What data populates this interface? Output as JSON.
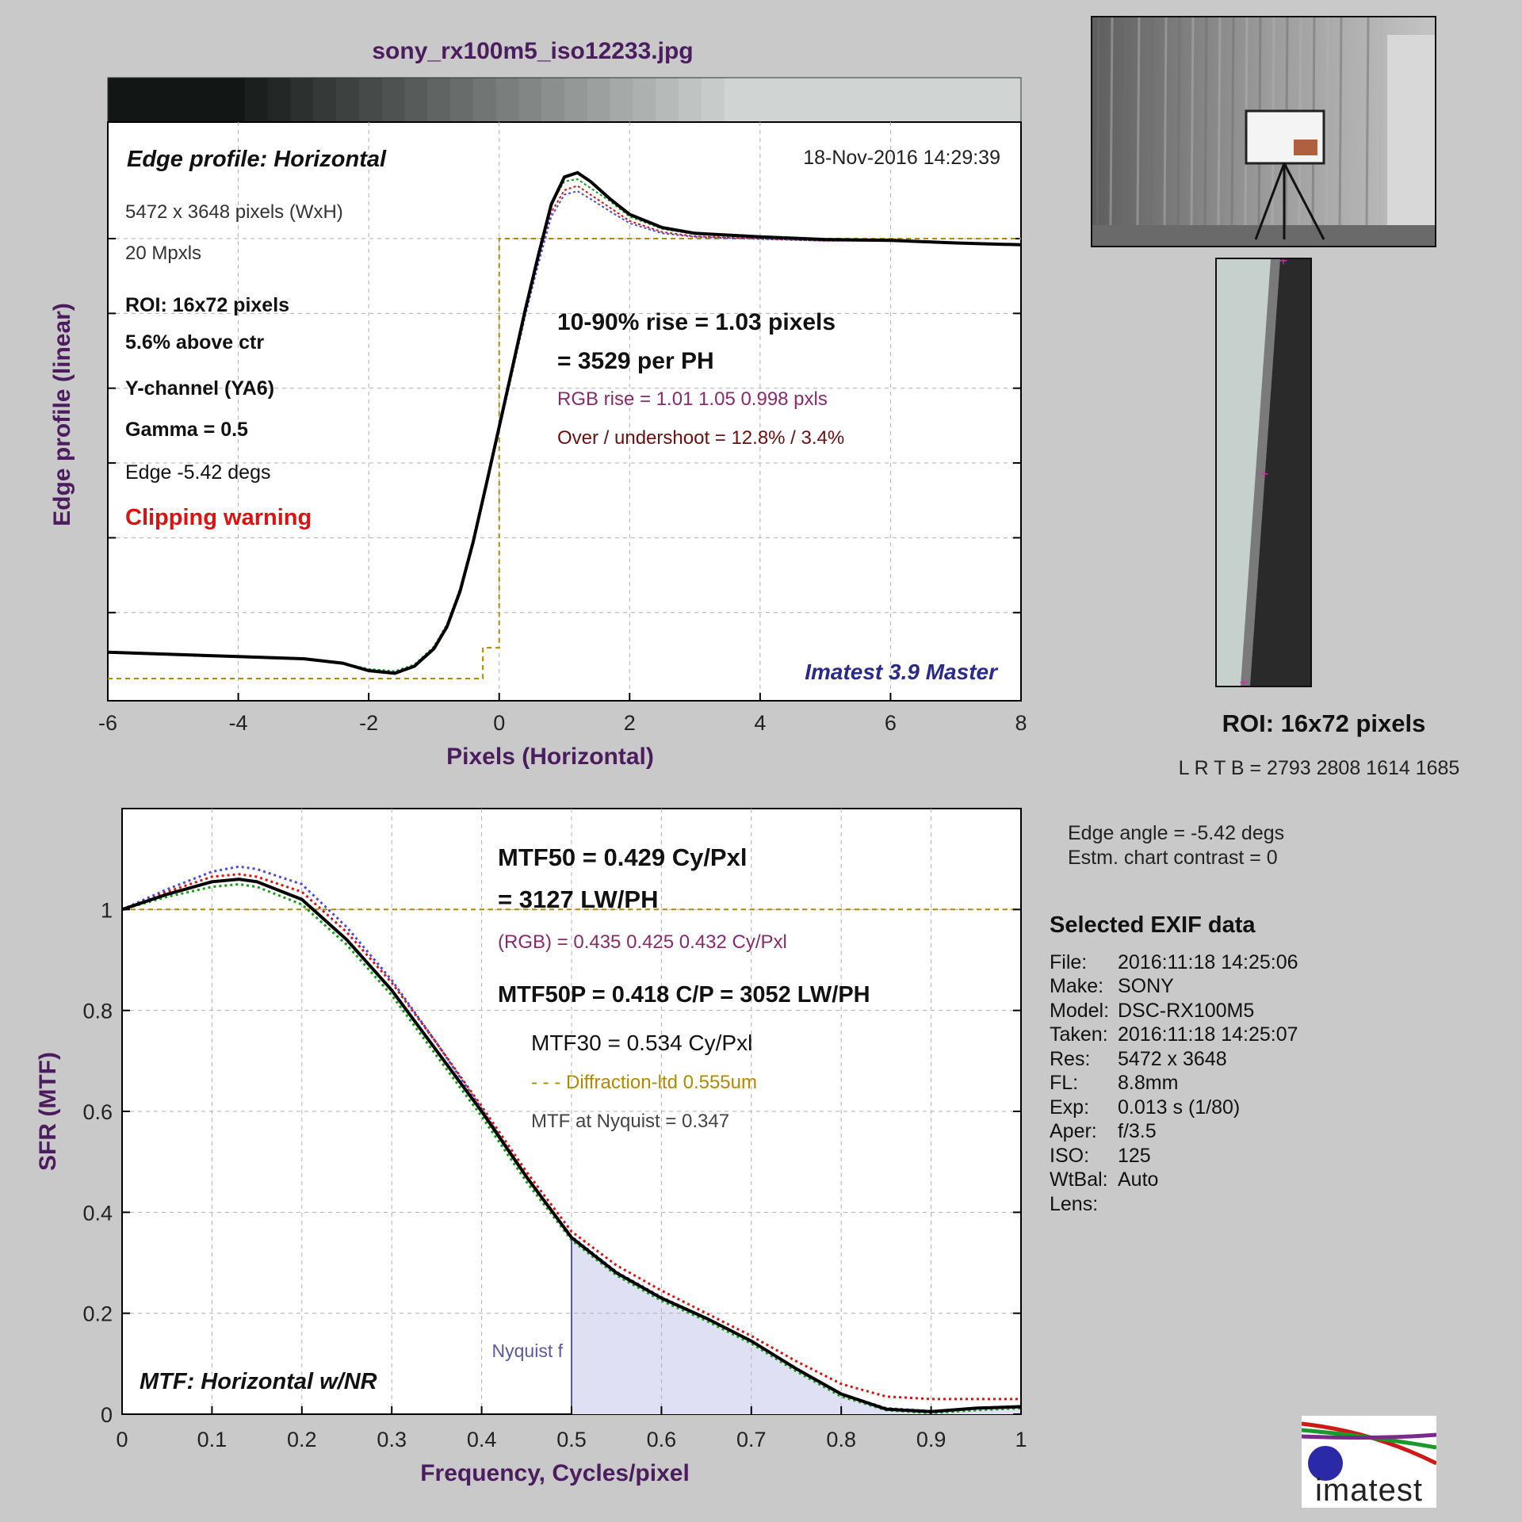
{
  "file_title": "sony_rx100m5_iso12233.jpg",
  "colors": {
    "title": "#4b1c5e",
    "axis_label": "#4b1c5e",
    "rgb_text": "#8a2a6e",
    "overshoot_text": "#6a1010",
    "clipping": "#dd1111",
    "imatest": "#2a2a8a",
    "diffraction": "#b08a00",
    "nyquist": "#5a5aa0",
    "red_series": "#e01010",
    "green_series": "#10a010",
    "blue_series": "#4a4ad8",
    "y_series": "#000000"
  },
  "edge": {
    "chart_title": "Edge profile: Horizontal",
    "date": "18-Nov-2016 14:29:39",
    "size": "5472 x 3648 pixels  (WxH)",
    "mpxls": "20 Mpxls",
    "roi": "ROI:  16x72 pixels",
    "above": "5.6% above ctr",
    "channel": "Y-channel  (YA6)",
    "gamma": "Gamma = 0.5",
    "edge_angle": "Edge -5.42 degs",
    "clipping": "Clipping warning",
    "rise1": "10-90% rise = 1.03 pixels",
    "rise2": "= 3529 per PH",
    "rgb_rise": "RGB rise = 1.01  1.05  0.998 pxls",
    "overshoot": "Over / undershoot = 12.8% / 3.4%",
    "watermark": "Imatest 3.9 Master"
  },
  "roi_panel": {
    "label": "ROI:  16x72 pixels",
    "coords": "L R  T B = 2793 2808  1614 1685",
    "edge_angle": "Edge angle = -5.42 degs",
    "contrast": "Estm. chart contrast = 0"
  },
  "mtf": {
    "mtf50": "MTF50 = 0.429 Cy/Pxl",
    "lwph": "= 3127 LW/PH",
    "rgb": "(RGB) = 0.435  0.425  0.432 Cy/Pxl",
    "mtf50p": "MTF50P = 0.418 C/P = 3052 LW/PH",
    "mtf30": "MTF30 = 0.534 Cy/Pxl",
    "diffraction": "- - - Diffraction-ltd  0.555um",
    "nyquist_val": "MTF at Nyquist = 0.347",
    "nyquist_label": "Nyquist f",
    "chart_label": "MTF: Horizontal w/NR"
  },
  "exif": {
    "heading": "Selected EXIF data",
    "rows": [
      {
        "k": "File:",
        "v": "2016:11:18 14:25:06"
      },
      {
        "k": "Make:",
        "v": "SONY"
      },
      {
        "k": "Model:",
        "v": "DSC-RX100M5"
      },
      {
        "k": "Taken:",
        "v": "2016:11:18 14:25:07"
      },
      {
        "k": "Res:",
        "v": "5472 x 3648"
      },
      {
        "k": "FL:",
        "v": "8.8mm"
      },
      {
        "k": "Exp:",
        "v": "0.013 s  (1/80)"
      },
      {
        "k": "Aper:",
        "v": "f/3.5"
      },
      {
        "k": "ISO:",
        "v": "125"
      },
      {
        "k": "WtBal:",
        "v": "Auto"
      },
      {
        "k": "Lens:",
        "v": ""
      }
    ]
  },
  "logo_text": "imatest",
  "chart_data": [
    {
      "type": "line",
      "title": "Edge profile: Horizontal",
      "xlabel": "Pixels (Horizontal)",
      "ylabel": "Edge profile (linear)",
      "xlim": [
        -6,
        8
      ],
      "xticks": [
        -6,
        -4,
        -2,
        0,
        2,
        4,
        6,
        8
      ],
      "grid": true,
      "series": [
        {
          "x": [
            -6,
            -5,
            -4,
            -3,
            -2.4,
            -2,
            -1.6,
            -1.3,
            -1,
            -0.8,
            -0.6,
            -0.4,
            -0.2,
            0,
            0.2,
            0.4,
            0.6,
            0.8,
            1,
            1.2,
            1.4,
            1.7,
            2,
            2.5,
            3,
            4,
            5,
            6,
            7,
            8
          ],
          "y": [
            0.06,
            0.055,
            0.05,
            0.045,
            0.035,
            0.02,
            0.015,
            0.03,
            0.07,
            0.12,
            0.2,
            0.31,
            0.44,
            0.57,
            0.7,
            0.83,
            0.95,
            1.06,
            1.11,
            1.12,
            1.1,
            1.07,
            1.04,
            1.015,
            1.005,
            1.0,
            0.995,
            0.995,
            0.99,
            0.985
          ]
        },
        {
          "x": [
            -6,
            -5,
            -4,
            -3,
            -2.4,
            -2,
            -1.6,
            -1.3,
            -1,
            -0.8,
            -0.6,
            -0.4,
            -0.2,
            0,
            0.2,
            0.4,
            0.6,
            0.8,
            1,
            1.2,
            1.4,
            1.7,
            2,
            2.5,
            3,
            4,
            5,
            6,
            7,
            8
          ],
          "y": [
            0.06,
            0.055,
            0.05,
            0.045,
            0.035,
            0.022,
            0.017,
            0.032,
            0.073,
            0.124,
            0.205,
            0.316,
            0.447,
            0.578,
            0.71,
            0.84,
            0.965,
            1.08,
            1.13,
            1.135,
            1.115,
            1.085,
            1.05,
            1.022,
            1.01,
            1.003,
            0.997,
            0.996,
            0.99,
            0.986
          ]
        },
        {
          "x": [
            -6,
            -5,
            -4,
            -3,
            -2.4,
            -2,
            -1.6,
            -1.3,
            -1,
            -0.8,
            -0.6,
            -0.4,
            -0.2,
            0,
            0.2,
            0.4,
            0.6,
            0.8,
            1,
            1.2,
            1.4,
            1.7,
            2,
            2.5,
            3,
            4,
            5,
            6,
            7,
            8
          ],
          "y": [
            0.06,
            0.055,
            0.05,
            0.045,
            0.035,
            0.02,
            0.015,
            0.03,
            0.07,
            0.118,
            0.196,
            0.306,
            0.434,
            0.564,
            0.694,
            0.824,
            0.942,
            1.05,
            1.1,
            1.108,
            1.09,
            1.062,
            1.035,
            1.012,
            1.004,
            0.999,
            0.995,
            0.995,
            0.99,
            0.985
          ]
        },
        {
          "x": [
            -6,
            -5,
            -4,
            -3,
            -2.4,
            -2,
            -1.6,
            -1.3,
            -1,
            -0.8,
            -0.6,
            -0.4,
            -0.2,
            0,
            0.2,
            0.4,
            0.6,
            0.8,
            1,
            1.2,
            1.4,
            1.7,
            2,
            2.5,
            3,
            4,
            5,
            6,
            7,
            8
          ],
          "y": [
            0.06,
            0.055,
            0.05,
            0.045,
            0.035,
            0.018,
            0.012,
            0.028,
            0.068,
            0.118,
            0.198,
            0.31,
            0.44,
            0.572,
            0.705,
            0.838,
            0.962,
            1.078,
            1.14,
            1.15,
            1.13,
            1.09,
            1.055,
            1.025,
            1.012,
            1.004,
            0.998,
            0.996,
            0.99,
            0.986
          ]
        },
        {
          "x": [
            -6,
            -0.25,
            -0.25,
            0,
            0,
            8
          ],
          "y": [
            0,
            0,
            0.07,
            0.07,
            1,
            1
          ]
        }
      ]
    },
    {
      "type": "line",
      "title": "MTF: Horizontal w/NR",
      "xlabel": "Frequency, Cycles/pixel",
      "ylabel": "SFR (MTF)",
      "xlim": [
        0,
        1
      ],
      "ylim": [
        0,
        1.2
      ],
      "xticks": [
        0,
        0.1,
        0.2,
        0.3,
        0.4,
        0.5,
        0.6,
        0.7,
        0.8,
        0.9,
        1
      ],
      "yticks": [
        0,
        0.2,
        0.4,
        0.6,
        0.8,
        1
      ],
      "grid": true,
      "series": [
        {
          "x": [
            0,
            0.05,
            0.1,
            0.13,
            0.15,
            0.2,
            0.25,
            0.3,
            0.35,
            0.4,
            0.45,
            0.5,
            0.55,
            0.6,
            0.65,
            0.7,
            0.75,
            0.8,
            0.85,
            0.9,
            0.95,
            1
          ],
          "y": [
            1,
            1.03,
            1.055,
            1.06,
            1.055,
            1.02,
            0.94,
            0.84,
            0.72,
            0.6,
            0.47,
            0.35,
            0.28,
            0.23,
            0.19,
            0.145,
            0.09,
            0.04,
            0.01,
            0.005,
            0.012,
            0.015
          ]
        },
        {
          "x": [
            0,
            0.05,
            0.1,
            0.13,
            0.15,
            0.2,
            0.25,
            0.3,
            0.35,
            0.4,
            0.45,
            0.5,
            0.55,
            0.6,
            0.65,
            0.7,
            0.75,
            0.8,
            0.85,
            0.9,
            0.95,
            1
          ],
          "y": [
            1,
            1.035,
            1.065,
            1.07,
            1.065,
            1.035,
            0.955,
            0.855,
            0.735,
            0.61,
            0.48,
            0.362,
            0.295,
            0.245,
            0.2,
            0.155,
            0.105,
            0.06,
            0.035,
            0.03,
            0.03,
            0.03
          ]
        },
        {
          "x": [
            0,
            0.05,
            0.1,
            0.13,
            0.15,
            0.2,
            0.25,
            0.3,
            0.35,
            0.4,
            0.45,
            0.5,
            0.55,
            0.6,
            0.65,
            0.7,
            0.75,
            0.8,
            0.85,
            0.9,
            0.95,
            1
          ],
          "y": [
            1,
            1.025,
            1.045,
            1.05,
            1.045,
            1.01,
            0.93,
            0.83,
            0.71,
            0.59,
            0.46,
            0.345,
            0.275,
            0.225,
            0.185,
            0.14,
            0.085,
            0.035,
            0.008,
            0.002,
            0.008,
            0.012
          ]
        },
        {
          "x": [
            0,
            0.05,
            0.1,
            0.13,
            0.15,
            0.2,
            0.25,
            0.3,
            0.35,
            0.4,
            0.45,
            0.5,
            0.55,
            0.6,
            0.65,
            0.7,
            0.75,
            0.8,
            0.85,
            0.9,
            0.95,
            1
          ],
          "y": [
            1,
            1.04,
            1.075,
            1.085,
            1.08,
            1.05,
            0.965,
            0.86,
            0.735,
            0.605,
            0.47,
            0.352,
            0.282,
            0.232,
            0.19,
            0.145,
            0.09,
            0.04,
            0.012,
            0.006,
            0.012,
            0.016
          ]
        },
        {
          "x": [
            0,
            1
          ],
          "y": [
            1,
            1
          ]
        }
      ]
    }
  ]
}
